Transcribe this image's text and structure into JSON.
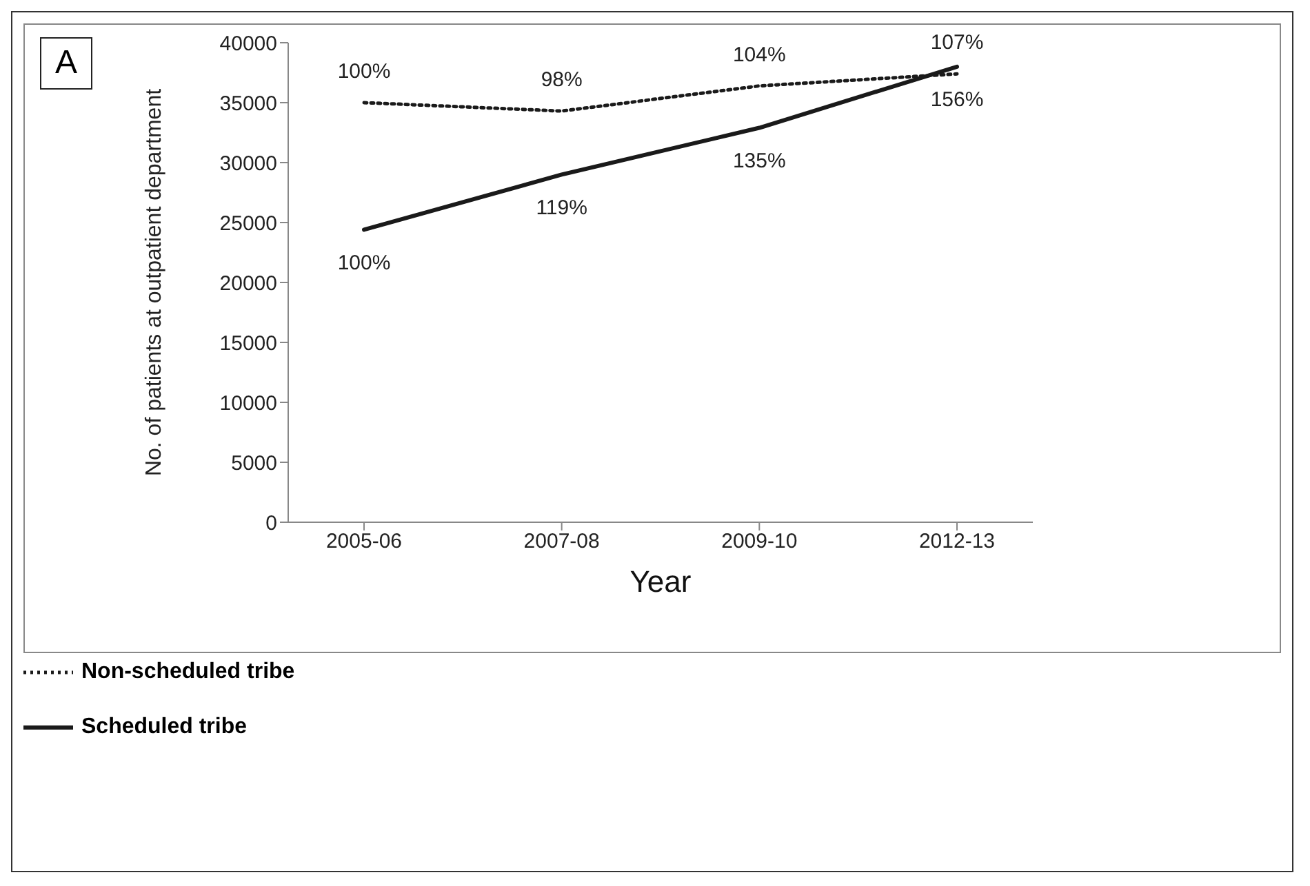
{
  "chart_data": {
    "type": "line",
    "xlabel": "Year",
    "ylabel": "No. of patients at outpatient department",
    "categories": [
      "2005-06",
      "2007-08",
      "2009-10",
      "2012-13"
    ],
    "series": [
      {
        "name": "Non-scheduled tribe",
        "color": "#1a1a1a",
        "line_style": "dotted",
        "values": [
          35000,
          34300,
          36400,
          37400
        ]
      },
      {
        "name": "Scheduled tribe",
        "color": "#1a1a1a",
        "line_style": "solid",
        "values": [
          24400,
          29000,
          32900,
          38000
        ]
      }
    ],
    "ylim": [
      0,
      40000
    ],
    "yticks": [
      0,
      5000,
      10000,
      15000,
      20000,
      25000,
      30000,
      35000,
      40000
    ],
    "grid": false,
    "legend": "bottom",
    "marker": "none",
    "annotations": [
      "A",
      {
        "text": "100%",
        "x": "2005-06",
        "y": 35000
      },
      {
        "text": "98%",
        "x": "2007-08",
        "y": 34300
      },
      {
        "text": "104%",
        "x": "2009-10",
        "y": 36400
      },
      {
        "text": "107%",
        "x": "2012-13",
        "y": 37400
      },
      {
        "text": "100%",
        "x": "2005-06",
        "y": 24400
      },
      {
        "text": "119%",
        "x": "2007-08",
        "y": 29000
      },
      {
        "text": "135%",
        "x": "2009-10",
        "y": 32900
      },
      {
        "text": "156%",
        "x": "2012-13",
        "y": 38000
      }
    ]
  }
}
